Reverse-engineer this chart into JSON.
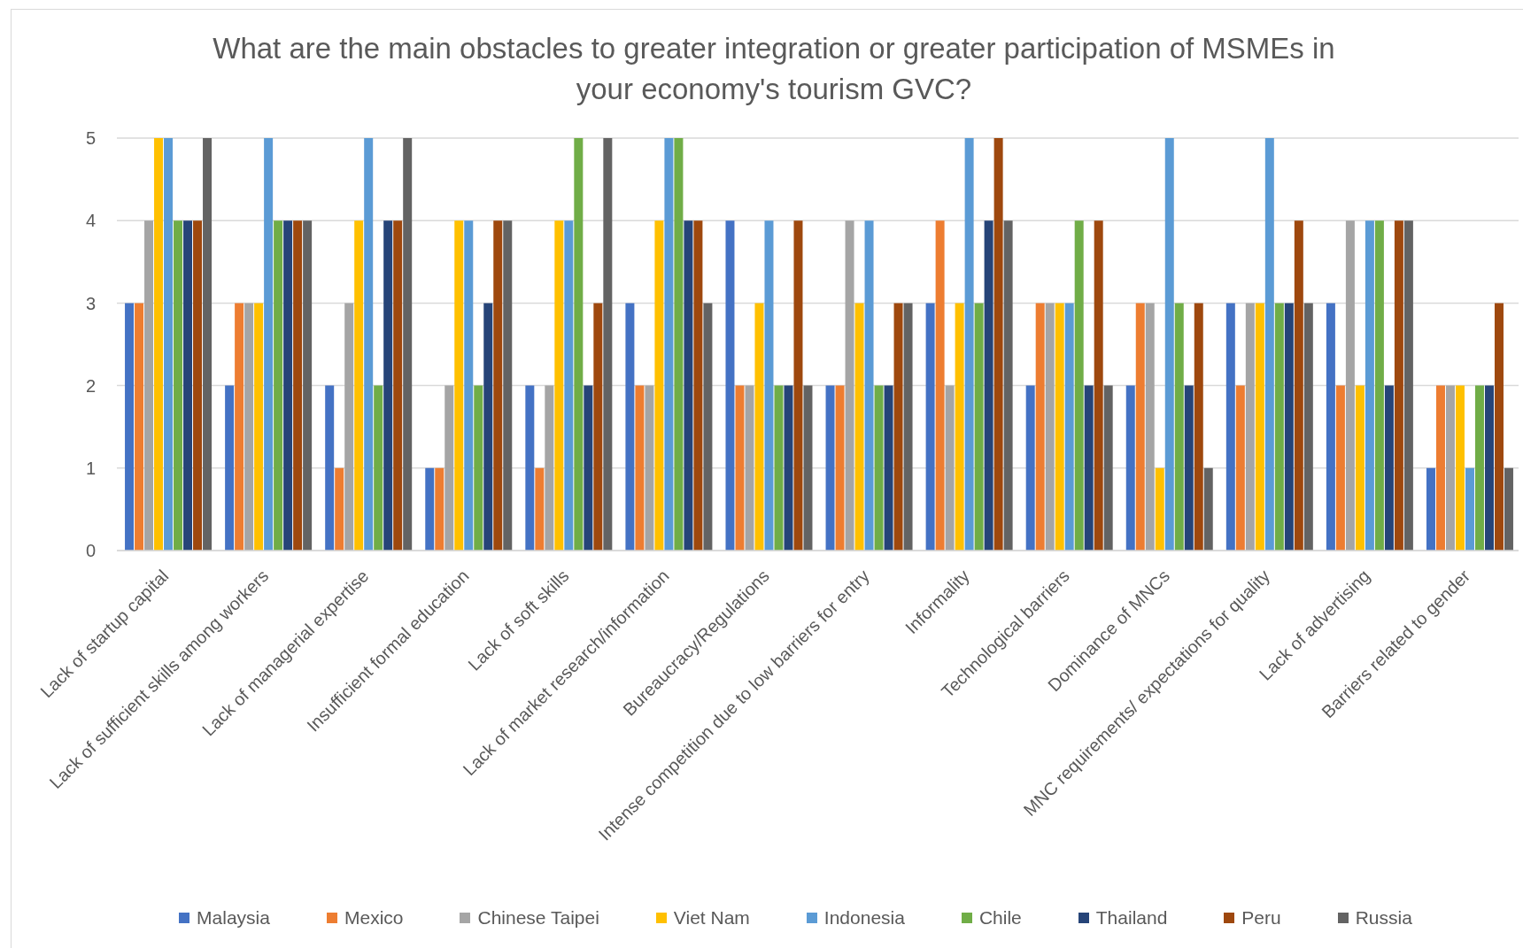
{
  "chart_data": {
    "type": "bar",
    "title": "What are the main obstacles to greater integration or greater participation of MSMEs in your economy's tourism GVC?",
    "categories": [
      "Lack of startup capital",
      "Lack of sufficient skills among workers",
      "Lack of managerial expertise",
      "Insufficient formal education",
      "Lack of soft skills",
      "Lack of market research/information",
      "Bureaucracy/Regulations",
      "Intense competition due to low barriers for entry",
      "Informality",
      "Technological barriers",
      "Dominance of MNCs",
      "MNC requirements/ expectations for quality",
      "Lack of advertising",
      "Barriers related to gender"
    ],
    "series": [
      {
        "name": "Malaysia",
        "color": "#4472c4",
        "values": [
          3,
          2,
          2,
          1,
          2,
          3,
          4,
          2,
          3,
          2,
          2,
          3,
          3,
          1
        ]
      },
      {
        "name": "Mexico",
        "color": "#ed7d31",
        "values": [
          3,
          3,
          1,
          1,
          1,
          2,
          2,
          2,
          4,
          3,
          3,
          2,
          2,
          2
        ]
      },
      {
        "name": "Chinese Taipei",
        "color": "#a5a5a5",
        "values": [
          4,
          3,
          3,
          2,
          2,
          2,
          2,
          4,
          2,
          3,
          3,
          3,
          4,
          2
        ]
      },
      {
        "name": "Viet Nam",
        "color": "#ffc000",
        "values": [
          5,
          3,
          4,
          4,
          4,
          4,
          3,
          3,
          3,
          3,
          1,
          3,
          2,
          2
        ]
      },
      {
        "name": "Indonesia",
        "color": "#5b9bd5",
        "values": [
          5,
          5,
          5,
          4,
          4,
          5,
          4,
          4,
          5,
          3,
          5,
          5,
          4,
          1
        ]
      },
      {
        "name": "Chile",
        "color": "#70ad47",
        "values": [
          4,
          4,
          2,
          2,
          5,
          5,
          2,
          2,
          3,
          4,
          3,
          3,
          4,
          2
        ]
      },
      {
        "name": "Thailand",
        "color": "#264478",
        "values": [
          4,
          4,
          4,
          3,
          2,
          4,
          2,
          2,
          4,
          2,
          2,
          3,
          2,
          2
        ]
      },
      {
        "name": "Peru",
        "color": "#9e480e",
        "values": [
          4,
          4,
          4,
          4,
          3,
          4,
          4,
          3,
          5,
          4,
          3,
          4,
          4,
          3
        ]
      },
      {
        "name": "Russia",
        "color": "#636363",
        "values": [
          5,
          4,
          5,
          4,
          5,
          3,
          2,
          3,
          4,
          2,
          1,
          3,
          4,
          1
        ]
      }
    ],
    "ylim": [
      0,
      5
    ],
    "yticks": [
      0,
      1,
      2,
      3,
      4,
      5
    ],
    "grid": "y",
    "legend": "bottom"
  }
}
